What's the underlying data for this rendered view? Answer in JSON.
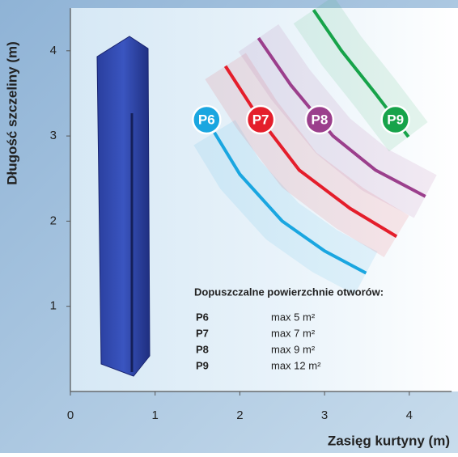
{
  "chart_data": {
    "type": "line",
    "x_label": "Zasięg kurtyny (m)",
    "y_label": "Długość szczeliny (m)",
    "xlim": [
      0,
      4.5
    ],
    "ylim": [
      0,
      4.5
    ],
    "xticks": [
      0,
      1,
      2,
      3,
      4
    ],
    "yticks": [
      1,
      2,
      3,
      4
    ],
    "legend_title": "Dopuszczalne powierzchnie otworów:",
    "series": [
      {
        "name": "P6",
        "color": "#1aa6e0",
        "limit": "max 5 m²",
        "x": [
          1.7,
          2.0,
          2.5,
          3.0,
          3.49
        ],
        "values": [
          3.04,
          2.55,
          2.0,
          1.65,
          1.39
        ]
      },
      {
        "name": "P7",
        "color": "#e41e2b",
        "limit": "max 7 m²",
        "x": [
          1.83,
          2.2,
          2.7,
          3.3,
          3.85
        ],
        "values": [
          3.82,
          3.25,
          2.6,
          2.15,
          1.82
        ]
      },
      {
        "name": "P8",
        "color": "#9b3f8c",
        "limit": "max 9 m²",
        "x": [
          2.22,
          2.6,
          3.1,
          3.6,
          4.19
        ],
        "values": [
          4.15,
          3.6,
          3.0,
          2.6,
          2.29
        ]
      },
      {
        "name": "P9",
        "color": "#17a34a",
        "limit": "max 12 m²",
        "x": [
          2.87,
          3.2,
          3.6,
          3.99
        ],
        "values": [
          4.48,
          4.0,
          3.5,
          2.99
        ]
      }
    ]
  }
}
